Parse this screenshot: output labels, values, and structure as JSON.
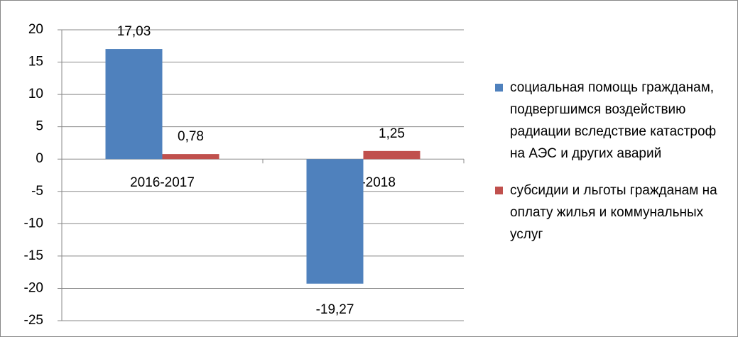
{
  "chart_data": {
    "type": "bar",
    "categories": [
      "2016-2017",
      "2017-2018"
    ],
    "series": [
      {
        "name": "социальная помощь гражданам, подвергшимся воздействию радиации вследствие катастроф на АЭС и других аварий",
        "color": "#4f81bd",
        "values": [
          17.03,
          -19.27
        ],
        "value_labels": [
          "17,03",
          "-19,27"
        ]
      },
      {
        "name": "субсидии и льготы гражданам на оплату жилья и коммунальных услуг",
        "color": "#c0504d",
        "values": [
          0.78,
          1.25
        ],
        "value_labels": [
          "0,78",
          "1,25"
        ]
      }
    ],
    "ylim": [
      -25,
      20
    ],
    "yticks": [
      -25,
      -20,
      -15,
      -10,
      -5,
      0,
      5,
      10,
      15,
      20
    ],
    "grid": true,
    "legend": "right"
  }
}
